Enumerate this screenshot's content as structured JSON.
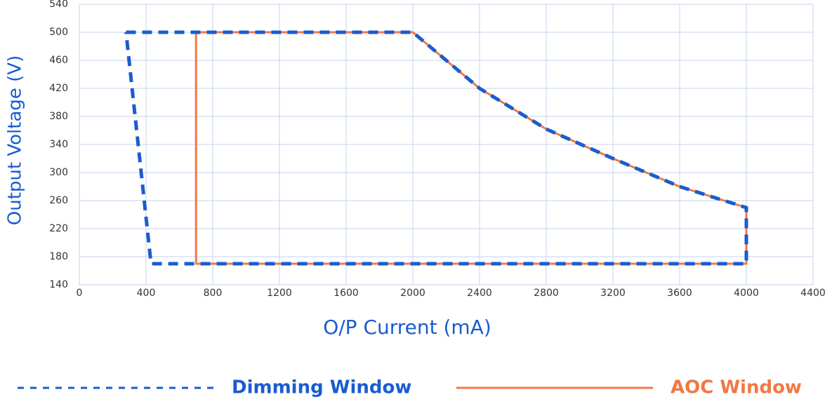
{
  "chart_data": {
    "type": "line",
    "xlabel": "O/P Current (mA)",
    "ylabel": "Output Voltage (V)",
    "xlim": [
      0,
      4400
    ],
    "xticks": [
      0,
      400,
      800,
      1200,
      1600,
      2000,
      2400,
      2800,
      3200,
      3600,
      4000,
      4400
    ],
    "ylim": [
      140,
      540
    ],
    "yticks": [
      140,
      180,
      220,
      260,
      300,
      340,
      380,
      420,
      460,
      500,
      540
    ],
    "grid": true,
    "series": [
      {
        "name": "AOC Window",
        "color": "#f07846",
        "dash": false,
        "x": [
          700,
          2000,
          2200,
          2400,
          2800,
          3200,
          3600,
          4000,
          4000,
          700,
          700
        ],
        "values": [
          500,
          500,
          460,
          420,
          362,
          320,
          280,
          250,
          170,
          170,
          500
        ]
      },
      {
        "name": "Dimming Window",
        "color": "#1a5cd0",
        "dash": true,
        "x": [
          280,
          2000,
          2200,
          2400,
          2800,
          3200,
          3600,
          4000,
          4000,
          430,
          280
        ],
        "values": [
          500,
          500,
          460,
          420,
          362,
          320,
          280,
          250,
          170,
          170,
          500
        ]
      }
    ]
  }
}
